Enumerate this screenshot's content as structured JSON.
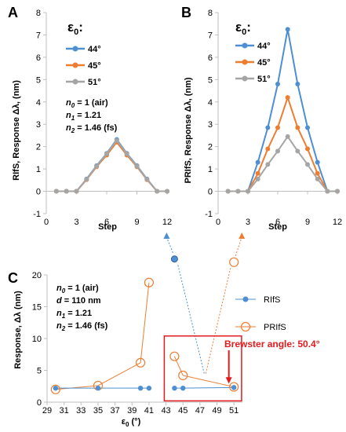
{
  "panels": {
    "A": {
      "label": "A",
      "ylabel": "RIfS, Response Δλ, (nm)",
      "xlabel": "Step",
      "legend_title": "ε",
      "legend_title_sub": "0",
      "legend_title_tail": ":",
      "legend": [
        "44°",
        "45°",
        "51°"
      ],
      "notes": [
        {
          "var": "n",
          "sub": "0",
          "rest": " = 1 (air)"
        },
        {
          "var": "n",
          "sub": "1",
          "rest": " = 1.21"
        },
        {
          "var": "n",
          "sub": "2",
          "rest": " = 1.46 (fs)"
        }
      ]
    },
    "B": {
      "label": "B",
      "ylabel": "PRIfS, Response Δλ, (nm)",
      "xlabel": "Step",
      "legend_title": "ε",
      "legend_title_sub": "0",
      "legend_title_tail": ":",
      "legend": [
        "44°",
        "45°",
        "51°"
      ]
    },
    "C": {
      "label": "C",
      "ylabel": "Response, Δλ (nm)",
      "xlabel_var": "ε",
      "xlabel_sub": "0",
      "xlabel_unit": " (°)",
      "legend": [
        "RIfS",
        "PRIfS"
      ],
      "annotation": "Brewster angle: 50.4°",
      "notes": [
        {
          "var": "n",
          "sub": "0",
          "rest": " = 1 (air)"
        },
        {
          "var": "d",
          "sub": "",
          "rest": " = 110 nm"
        },
        {
          "var": "n",
          "sub": "1",
          "rest": " = 1.21"
        },
        {
          "var": "n",
          "sub": "2",
          "rest": " = 1.46 (fs)"
        }
      ]
    }
  },
  "colors": {
    "e44": "#4e8fd1",
    "e45": "#ed7d31",
    "e51": "#a5a5a5",
    "rifs": "#4e8fd1",
    "prifs": "#ed7d31",
    "highlight": "#e41a1c",
    "axis": "#bfbfbf",
    "text": "#000000"
  },
  "chart_data": [
    {
      "id": "A",
      "type": "line",
      "xlabel": "Step",
      "ylabel": "RIfS, Response Δλ, (nm)",
      "xlim": [
        0,
        12
      ],
      "ylim": [
        -1,
        8
      ],
      "xticks": [
        0,
        3,
        6,
        9,
        12
      ],
      "yticks": [
        -1,
        0,
        1,
        2,
        3,
        4,
        5,
        6,
        7,
        8
      ],
      "x": [
        1,
        2,
        3,
        4,
        5,
        6,
        7,
        8,
        9,
        10,
        11,
        12
      ],
      "series": [
        {
          "name": "44°",
          "color_key": "e44",
          "values": [
            0,
            0,
            0,
            0.55,
            1.15,
            1.7,
            2.32,
            1.7,
            1.15,
            0.55,
            0,
            0
          ]
        },
        {
          "name": "45°",
          "color_key": "e45",
          "values": [
            0,
            0,
            0,
            0.52,
            1.1,
            1.62,
            2.2,
            1.62,
            1.1,
            0.52,
            0,
            0
          ]
        },
        {
          "name": "51°",
          "color_key": "e51",
          "values": [
            0,
            0,
            0,
            0.54,
            1.13,
            1.68,
            2.28,
            1.68,
            1.13,
            0.54,
            0,
            0
          ]
        }
      ]
    },
    {
      "id": "B",
      "type": "line",
      "xlabel": "Step",
      "ylabel": "PRIfS, Response Δλ, (nm)",
      "xlim": [
        0,
        12
      ],
      "ylim": [
        -1,
        8
      ],
      "xticks": [
        0,
        3,
        6,
        9,
        12
      ],
      "yticks": [
        -1,
        0,
        1,
        2,
        3,
        4,
        5,
        6,
        7,
        8
      ],
      "x": [
        1,
        2,
        3,
        4,
        5,
        6,
        7,
        8,
        9,
        10,
        11,
        12
      ],
      "series": [
        {
          "name": "44°",
          "color_key": "e44",
          "values": [
            0,
            0,
            0,
            1.3,
            2.85,
            4.8,
            7.25,
            4.8,
            2.85,
            1.3,
            0,
            0
          ]
        },
        {
          "name": "45°",
          "color_key": "e45",
          "values": [
            0,
            0,
            0,
            0.8,
            1.9,
            2.85,
            4.2,
            2.85,
            1.9,
            0.8,
            0,
            0
          ]
        },
        {
          "name": "51°",
          "color_key": "e51",
          "values": [
            0,
            0,
            0,
            0.55,
            1.2,
            1.8,
            2.45,
            1.8,
            1.2,
            0.55,
            0,
            0
          ]
        }
      ]
    },
    {
      "id": "C",
      "type": "scatter",
      "xlabel": "ε0 (°)",
      "ylabel": "Response, Δλ (nm)",
      "xlim": [
        29,
        52
      ],
      "ylim": [
        0,
        20
      ],
      "xticks": [
        29,
        31,
        33,
        35,
        37,
        39,
        41,
        43,
        45,
        47,
        49,
        51
      ],
      "yticks": [
        0,
        5,
        10,
        15,
        20
      ],
      "series": [
        {
          "name": "RIfS",
          "color_key": "rifs",
          "points": [
            [
              30,
              2.2
            ],
            [
              35,
              2.2
            ],
            [
              40,
              2.2
            ],
            [
              41,
              2.2
            ],
            [
              44,
              2.2
            ],
            [
              45,
              2.2
            ],
            [
              51,
              2.3
            ]
          ],
          "offplot": [
            44,
            22.5
          ]
        },
        {
          "name": "PRIfS",
          "color_key": "prifs",
          "points": [
            [
              30,
              2.0
            ],
            [
              35,
              2.6
            ],
            [
              40,
              6.2
            ],
            [
              41,
              18.8
            ],
            [
              44,
              7.2
            ],
            [
              45,
              4.2
            ],
            [
              51,
              2.4
            ]
          ],
          "offplot": [
            51,
            22.0
          ]
        }
      ],
      "annotation": {
        "text": "Brewster angle: 50.4°",
        "x": 50.4
      }
    }
  ]
}
